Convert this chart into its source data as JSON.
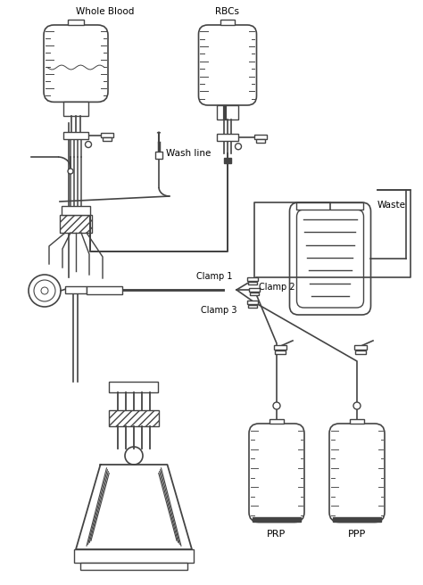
{
  "bg_color": "#ffffff",
  "lc": "#444444",
  "lw": 1.0,
  "labels": {
    "whole_blood": "Whole Blood",
    "rbcs": "RBCs",
    "wash_line": "Wash line",
    "waste": "Waste",
    "clamp1": "Clamp 1",
    "clamp2": "Clamp 2",
    "clamp3": "Clamp 3",
    "prp": "PRP",
    "ppp": "PPP"
  },
  "fig_width": 4.74,
  "fig_height": 6.56,
  "dpi": 100
}
